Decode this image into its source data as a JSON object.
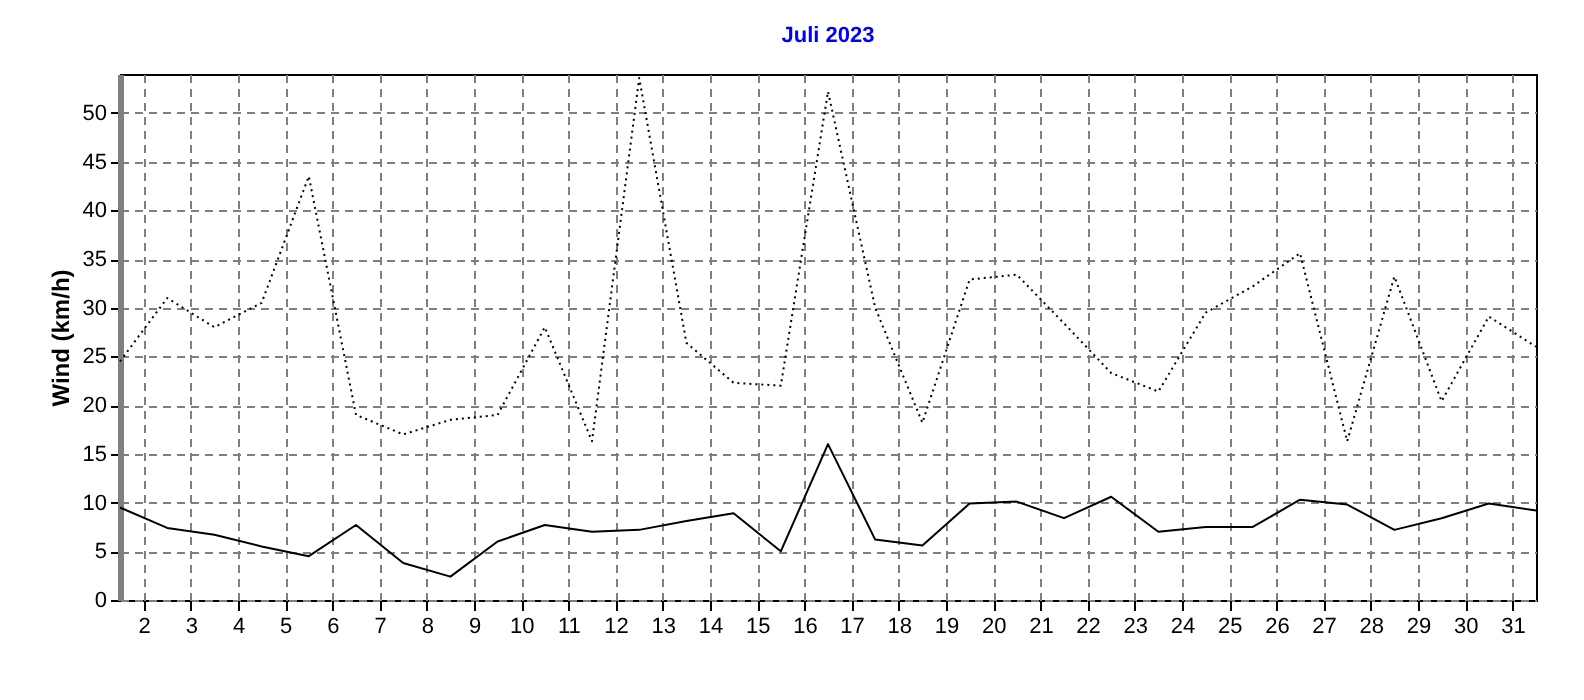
{
  "chart_data": {
    "type": "line",
    "title": "Juli 2023",
    "ylabel": "Wind  (km/h)",
    "x": [
      1.5,
      2.5,
      3.5,
      4.5,
      5.5,
      6.5,
      7.5,
      8.5,
      9.5,
      10.5,
      11.5,
      12.5,
      13.5,
      14.5,
      15.5,
      16.5,
      17.5,
      18.5,
      19.5,
      20.5,
      21.5,
      22.5,
      23.5,
      24.5,
      25.5,
      26.5,
      27.5,
      28.5,
      29.5,
      30.5,
      31.5
    ],
    "series": [
      {
        "color": "#000000",
        "line_style": "dotted",
        "values": [
          24.5,
          31,
          28,
          30.5,
          43.5,
          19,
          17,
          18.5,
          19,
          28,
          16.3,
          53.6,
          26.4,
          22.3,
          22,
          52.2,
          30,
          18.2,
          32.9,
          33.4,
          28.4,
          23.3,
          21.4,
          29.5,
          32.2,
          35.6,
          16.3,
          33.2,
          20.4,
          29.1,
          26
        ]
      },
      {
        "color": "#000000",
        "line_style": "solid",
        "values": [
          9.5,
          7.4,
          6.7,
          5.5,
          4.5,
          7.7,
          3.8,
          2.4,
          6,
          7.7,
          7,
          7.2,
          8.1,
          8.9,
          5,
          16,
          6.2,
          5.6,
          9.9,
          10.1,
          8.4,
          10.6,
          7,
          7.5,
          7.5,
          10.3,
          9.8,
          7.2,
          8.4,
          9.9,
          9.2
        ]
      }
    ],
    "xlim": [
      1.5,
      31.5
    ],
    "xticks": [
      2,
      3,
      4,
      5,
      6,
      7,
      8,
      9,
      10,
      11,
      12,
      13,
      14,
      15,
      16,
      17,
      18,
      19,
      20,
      21,
      22,
      23,
      24,
      25,
      26,
      27,
      28,
      29,
      30,
      31
    ],
    "ylim": [
      0,
      54
    ],
    "yticks": [
      0,
      5,
      10,
      15,
      20,
      25,
      30,
      35,
      40,
      45,
      50
    ],
    "grid": true,
    "marker": "none"
  }
}
